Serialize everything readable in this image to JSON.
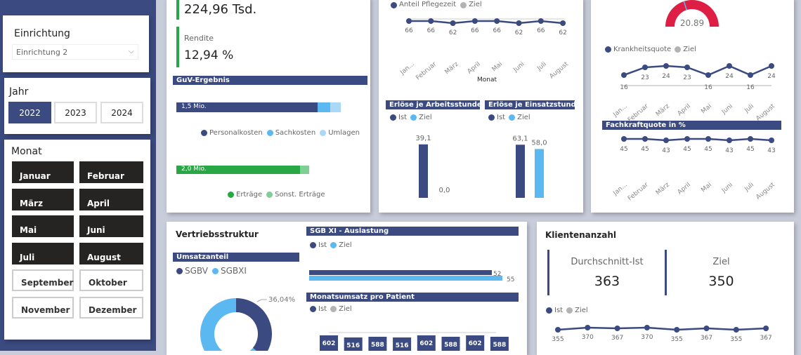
{
  "filters": {
    "einrichtung": {
      "label": "Einrichtung",
      "value": "Einrichtung 2"
    },
    "jahr": {
      "label": "Jahr",
      "options": [
        "2022",
        "2023",
        "2024"
      ],
      "selected": "2022"
    },
    "monat": {
      "label": "Monat",
      "options": [
        "Januar",
        "Februar",
        "März",
        "April",
        "Mai",
        "Juni",
        "Juli",
        "August",
        "September",
        "Oktober",
        "November",
        "Dezember"
      ],
      "selected": [
        "Januar",
        "Februar",
        "März",
        "April",
        "Mai",
        "Juni",
        "Juli",
        "August"
      ]
    }
  },
  "colors": {
    "navy": "#3b4a80",
    "blue": "#5bb8f0",
    "lightblue": "#aad8f7",
    "green": "#28a745",
    "lightgreen": "#7fcf94",
    "red": "#dd1f45",
    "gray": "#b3b3b3"
  },
  "kpi": {
    "top_value": "224,96 Tsd.",
    "rendite_label": "Rendite",
    "rendite_value": "12,94 %"
  },
  "guv": {
    "title": "GuV-Ergebnis",
    "cost_label": "1,5 Mio.",
    "cost_legend": [
      "Personalkosten",
      "Sachkosten",
      "Umlagen"
    ],
    "revenue_label": "2,0 Mio.",
    "revenue_legend": [
      "Erträge",
      "Sonst. Erträge"
    ]
  },
  "months_short": [
    "Jan...",
    "Februar",
    "März",
    "April",
    "Mai",
    "Juni",
    "Juli",
    "August"
  ],
  "pflegezeit": {
    "legend": [
      "Anteil Pflegezeit",
      "Ziel"
    ],
    "xlabel": "Monat"
  },
  "erloese_arbeit": {
    "title": "Erlöse je Arbeitsstunde",
    "legend": [
      "Ist",
      "Ziel"
    ]
  },
  "erloese_einsatz": {
    "title": "Erlöse je Einsatzstunden",
    "legend": [
      "Ist",
      "Ziel"
    ]
  },
  "gauge": {
    "value": "20.89"
  },
  "krankheit": {
    "legend": [
      "Krankheitsquote",
      "Ziel"
    ]
  },
  "fachkraft": {
    "title": "Fachkraftquote in %"
  },
  "vertrieb": {
    "title": "Vertriebsstruktur",
    "umsatz_title": "Umsatzanteil",
    "legend": [
      "SGBV",
      "SGBXI"
    ],
    "label": "36,04%"
  },
  "auslastung": {
    "title": "SGB XI - Auslastung",
    "legend": [
      "Ist",
      "Ziel"
    ]
  },
  "monatsumsatz": {
    "title": "Monatsumsatz pro Patient",
    "legend": [
      "Ist",
      "Ziel"
    ]
  },
  "klienten": {
    "title": "Klientenanzahl",
    "avg_label": "Durchschnitt-Ist",
    "avg_value": "363",
    "ziel_label": "Ziel",
    "ziel_value": "350",
    "legend": [
      "Ist",
      "Ziel"
    ]
  },
  "chart_data": [
    {
      "id": "guv_kosten",
      "type": "bar",
      "orientation": "horizontal",
      "stacked": true,
      "series": [
        {
          "name": "Personalkosten",
          "values": [
            1.5
          ]
        },
        {
          "name": "Sachkosten",
          "values": [
            0.13
          ]
        },
        {
          "name": "Umlagen",
          "values": [
            0.11
          ]
        }
      ],
      "unit": "Mio."
    },
    {
      "id": "guv_ertraege",
      "type": "bar",
      "orientation": "horizontal",
      "stacked": true,
      "series": [
        {
          "name": "Erträge",
          "values": [
            2.0
          ]
        },
        {
          "name": "Sonst. Erträge",
          "values": [
            0.15
          ]
        }
      ],
      "unit": "Mio."
    },
    {
      "id": "pflegezeit",
      "type": "line",
      "categories": [
        "Januar",
        "Februar",
        "März",
        "April",
        "Mai",
        "Juni",
        "Juli",
        "August"
      ],
      "series": [
        {
          "name": "Anteil Pflegezeit",
          "values": [
            66,
            66,
            62,
            66,
            66,
            62,
            66,
            62
          ]
        }
      ],
      "xlabel": "Monat"
    },
    {
      "id": "erloese_arbeit",
      "type": "bar",
      "categories": [
        "Ist",
        "Ziel"
      ],
      "values": [
        39.1,
        0.0
      ],
      "labels": [
        "39,1",
        "0,0"
      ]
    },
    {
      "id": "erloese_einsatz",
      "type": "bar",
      "categories": [
        "Ist",
        "Ziel"
      ],
      "values": [
        63.1,
        58.0
      ],
      "labels": [
        "63,1",
        "58,0"
      ]
    },
    {
      "id": "gauge",
      "type": "gauge",
      "value": 20.89
    },
    {
      "id": "krankheit",
      "type": "line",
      "categories": [
        "Januar",
        "Februar",
        "März",
        "April",
        "Mai",
        "Juni",
        "Juli",
        "August"
      ],
      "series": [
        {
          "name": "Krankheitsquote",
          "values": [
            16,
            23,
            24,
            23,
            16,
            24,
            16,
            24
          ]
        }
      ]
    },
    {
      "id": "fachkraft",
      "type": "line",
      "categories": [
        "Januar",
        "Februar",
        "März",
        "April",
        "Mai",
        "Juni",
        "Juli",
        "August"
      ],
      "series": [
        {
          "name": "Fachkraftquote",
          "values": [
            45,
            45,
            43,
            45,
            45,
            43,
            45,
            43
          ]
        }
      ]
    },
    {
      "id": "umsatzanteil",
      "type": "pie",
      "categories": [
        "SGBV",
        "SGBXI"
      ],
      "values": [
        36.04,
        63.96
      ],
      "labels": [
        "36,04%"
      ]
    },
    {
      "id": "auslastung",
      "type": "bar",
      "orientation": "horizontal",
      "categories": [
        "Ist",
        "Ziel"
      ],
      "values": [
        52,
        55
      ]
    },
    {
      "id": "monatsumsatz",
      "type": "table",
      "values": [
        602,
        516,
        588,
        516,
        602,
        588,
        602,
        588
      ]
    },
    {
      "id": "klienten",
      "type": "line",
      "series": [
        {
          "name": "Ist",
          "values": [
            355,
            370,
            367,
            370,
            355,
            367,
            355,
            367
          ]
        }
      ]
    }
  ]
}
